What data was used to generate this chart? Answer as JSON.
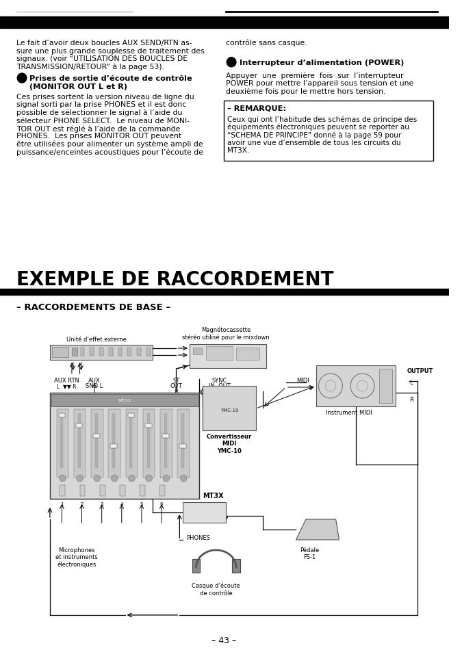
{
  "page_width": 6.75,
  "page_height": 9.54,
  "bg_color": "#ffffff",
  "text_color": "#000000",
  "body_fontsize": 7.8,
  "bold_fontsize": 8.2,
  "title_fontsize": 20,
  "subtitle_fontsize": 9.5,
  "left_col_text": [
    "Le fait d’avoir deux boucles AUX SEND/RTN as-",
    "sure une plus grande souplesse de traitement des",
    "signaux. (voir “UTILISATION DES BOUCLES DE",
    "TRANSMISSION/RETOUR” à la page 53)."
  ],
  "monitor_body": [
    "Ces prises sortent la version niveau de ligne du",
    "signal sorti par la prise PHONES et il est donc",
    "possible de sélectionner le signal à l’aide du",
    "sélecteur PHONE SELECT.  Le niveau de MONI-",
    "TOR OUT est réglé à l’aide de la commande",
    "PHONES.  Les prises MONITOR OUT peuvent",
    "être utilisées pour alimenter un système ampli de",
    "puissance/enceintes acoustiques pour l’écoute de"
  ],
  "right_col_top": "contrôle sans casque.",
  "power_body": [
    "Appuyer  une  première  fois  sur  l’interrupteur",
    "POWER pour mettre l’appareil sous tension et une",
    "deuxième fois pour le mettre hors tension."
  ],
  "remarque_title": "REMARQUE:",
  "remarque_body": [
    "Ceux qui ont l’habitude des schémas de principe des",
    "équipements électroniques peuvent se reporter au",
    "“SCHEMA DE PRINCIPE” donné à la page 59 pour",
    "avoir une vue d’ensemble de tous les circuits du",
    "MT3X."
  ],
  "exemple_title": "EXEMPLE DE RACCORDEMENT",
  "raccordements_subtitle": "– RACCORDEMENTS DE BASE –",
  "page_number": "– 43 –"
}
